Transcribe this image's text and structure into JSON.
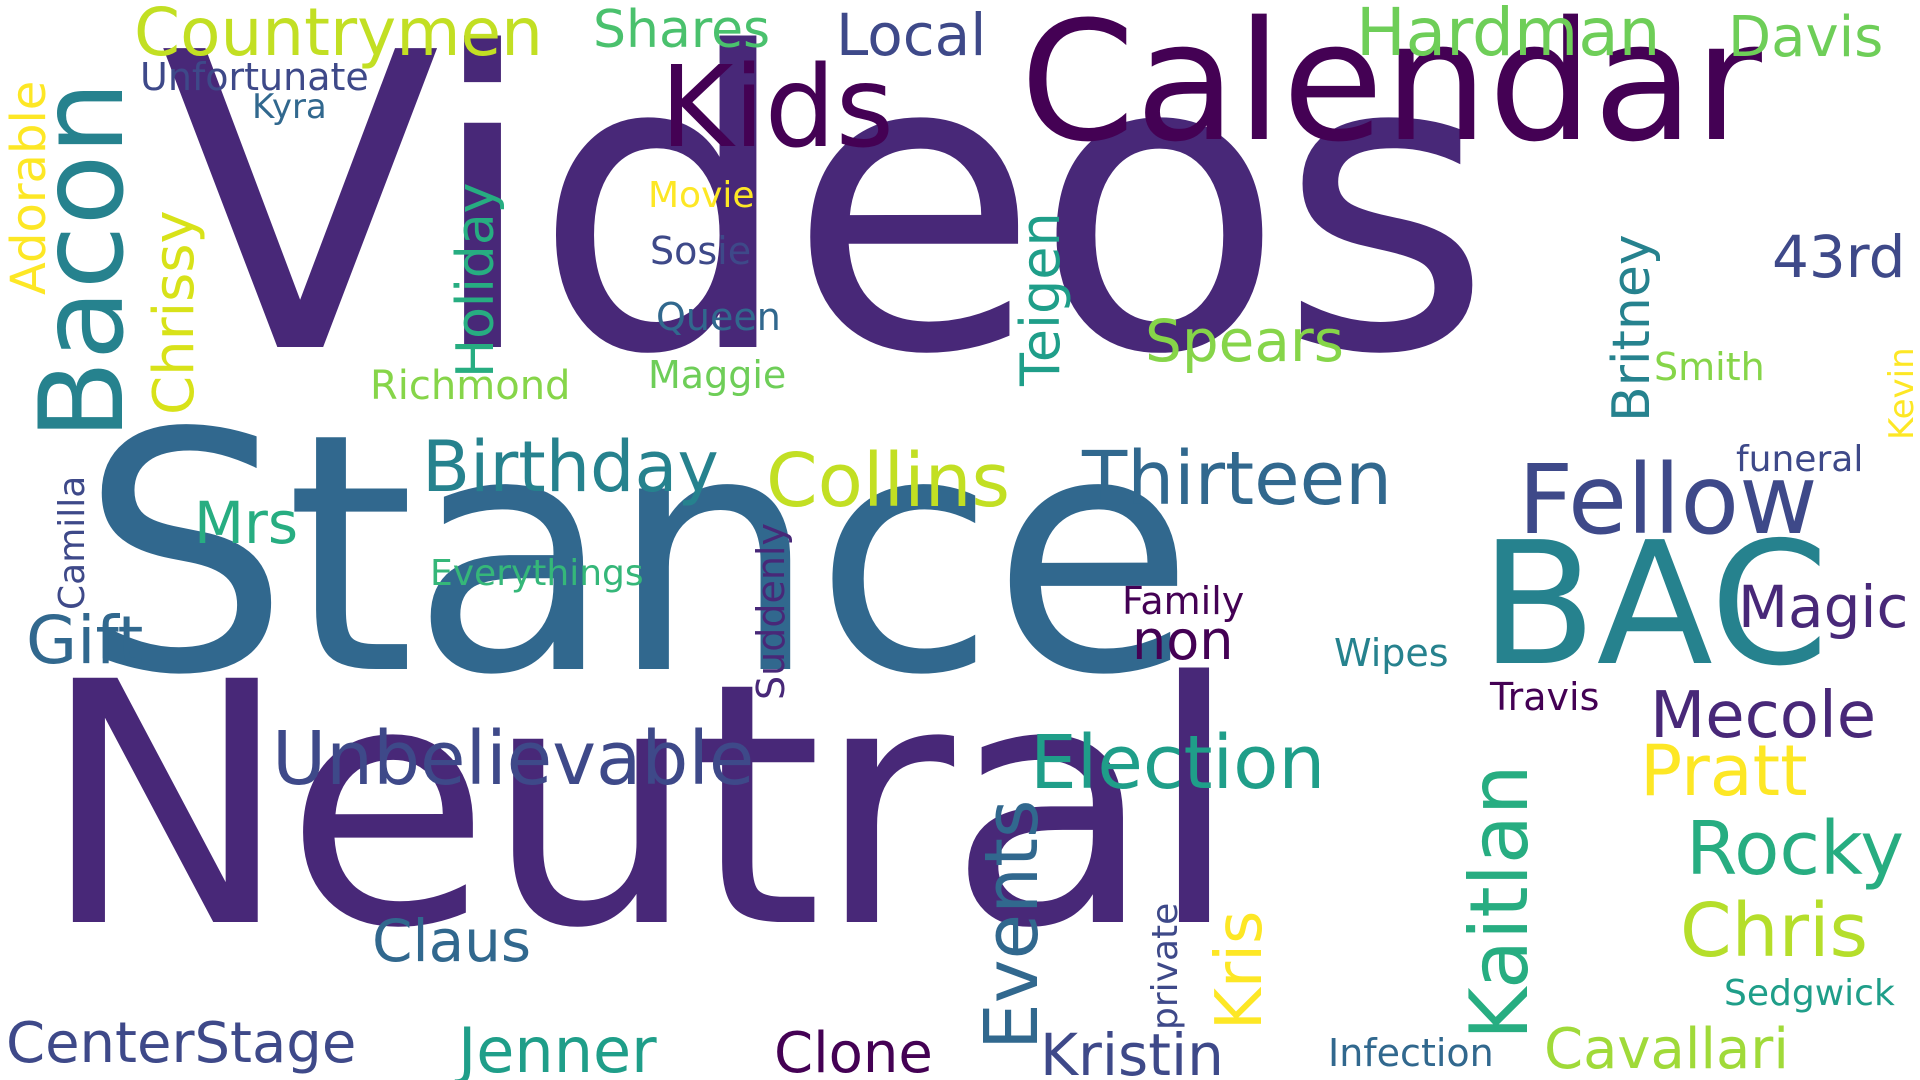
{
  "palette": {
    "background": "#ffffff",
    "deep_purple": "#440154",
    "indigo": "#482878",
    "blue_purple": "#3e4989",
    "steel_blue": "#31688e",
    "teal_blue": "#26828e",
    "teal": "#1f9e89",
    "green_teal": "#35b779",
    "green": "#6ece58",
    "lime": "#b5de2b",
    "yellow": "#fde725"
  },
  "words": {
    "videos": "Videos",
    "stance": "Stance",
    "neutral": "Neutral",
    "calendar": "Calendar",
    "kids": "Kids",
    "bac": "BAC",
    "bacon": "Bacon",
    "countrymen": "Countrymen",
    "shares": "Shares",
    "local": "Local",
    "hardman": "Hardman",
    "davis": "Davis",
    "unfortunate": "Unfortunate",
    "kyra": "Kyra",
    "adorable": "Adorable",
    "chrissy": "Chrissy",
    "holiday": "Holiday",
    "movie": "Movie",
    "sosie": "Sosie",
    "queen": "Queen",
    "maggie": "Maggie",
    "richmond": "Richmond",
    "teigen": "Teigen",
    "spears": "Spears",
    "britney": "Britney",
    "thirteen": "Thirteen",
    "num_43rd": "43rd",
    "smith": "Smith",
    "kevin": "Kevin",
    "funeral": "funeral",
    "fellow": "Fellow",
    "birthday": "Birthday",
    "collins": "Collins",
    "mrs": "Mrs",
    "camilla": "Camilla",
    "everythings": "Everythings",
    "gift": "Gift",
    "family": "Family",
    "non": "non",
    "magic": "Magic",
    "suddenly": "Suddenly",
    "wipes": "Wipes",
    "travis": "Travis",
    "mecole": "Mecole",
    "pratt": "Pratt",
    "unbelievable": "Unbelievable",
    "election": "Election",
    "events": "Events",
    "kaitlan": "Kaitlan",
    "rocky": "Rocky",
    "chris": "Chris",
    "claus": "Claus",
    "private": "private",
    "kris": "Kris",
    "sedgwick": "Sedgwick",
    "centerstage": "CenterStage",
    "jenner": "Jenner",
    "clone": "Clone",
    "kristin": "Kristin",
    "infection": "Infection",
    "cavallari": "Cavallari"
  }
}
